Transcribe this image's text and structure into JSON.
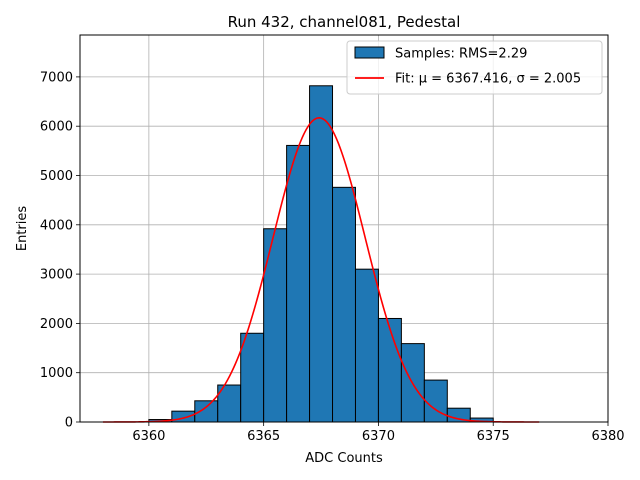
{
  "chart_data": {
    "type": "bar",
    "title": "Run 432, channel081, Pedestal",
    "xlabel": "ADC Counts",
    "ylabel": "Entries",
    "xlim": [
      6357,
      6380
    ],
    "ylim": [
      0,
      7850
    ],
    "xticks": [
      6360,
      6365,
      6370,
      6375,
      6380
    ],
    "yticks": [
      0,
      1000,
      2000,
      3000,
      4000,
      5000,
      6000,
      7000
    ],
    "grid": true,
    "legend_position": "top-right",
    "histogram": {
      "name": "Samples: RMS=2.29",
      "color": "#1f77b4",
      "bin_edges": [
        6360,
        6361,
        6362,
        6363,
        6364,
        6365,
        6366,
        6367,
        6368,
        6369,
        6370,
        6371,
        6372,
        6373,
        6374,
        6375
      ],
      "counts": [
        50,
        220,
        430,
        750,
        1800,
        3920,
        5610,
        6820,
        4760,
        3100,
        2100,
        1590,
        850,
        280,
        80
      ]
    },
    "fit": {
      "name": "Fit: μ = 6367.416, σ = 2.005",
      "color": "#ff0000",
      "type": "gaussian",
      "mu": 6367.416,
      "sigma": 2.005,
      "amplitude": 6170,
      "x_range": [
        6358,
        6377
      ]
    }
  }
}
